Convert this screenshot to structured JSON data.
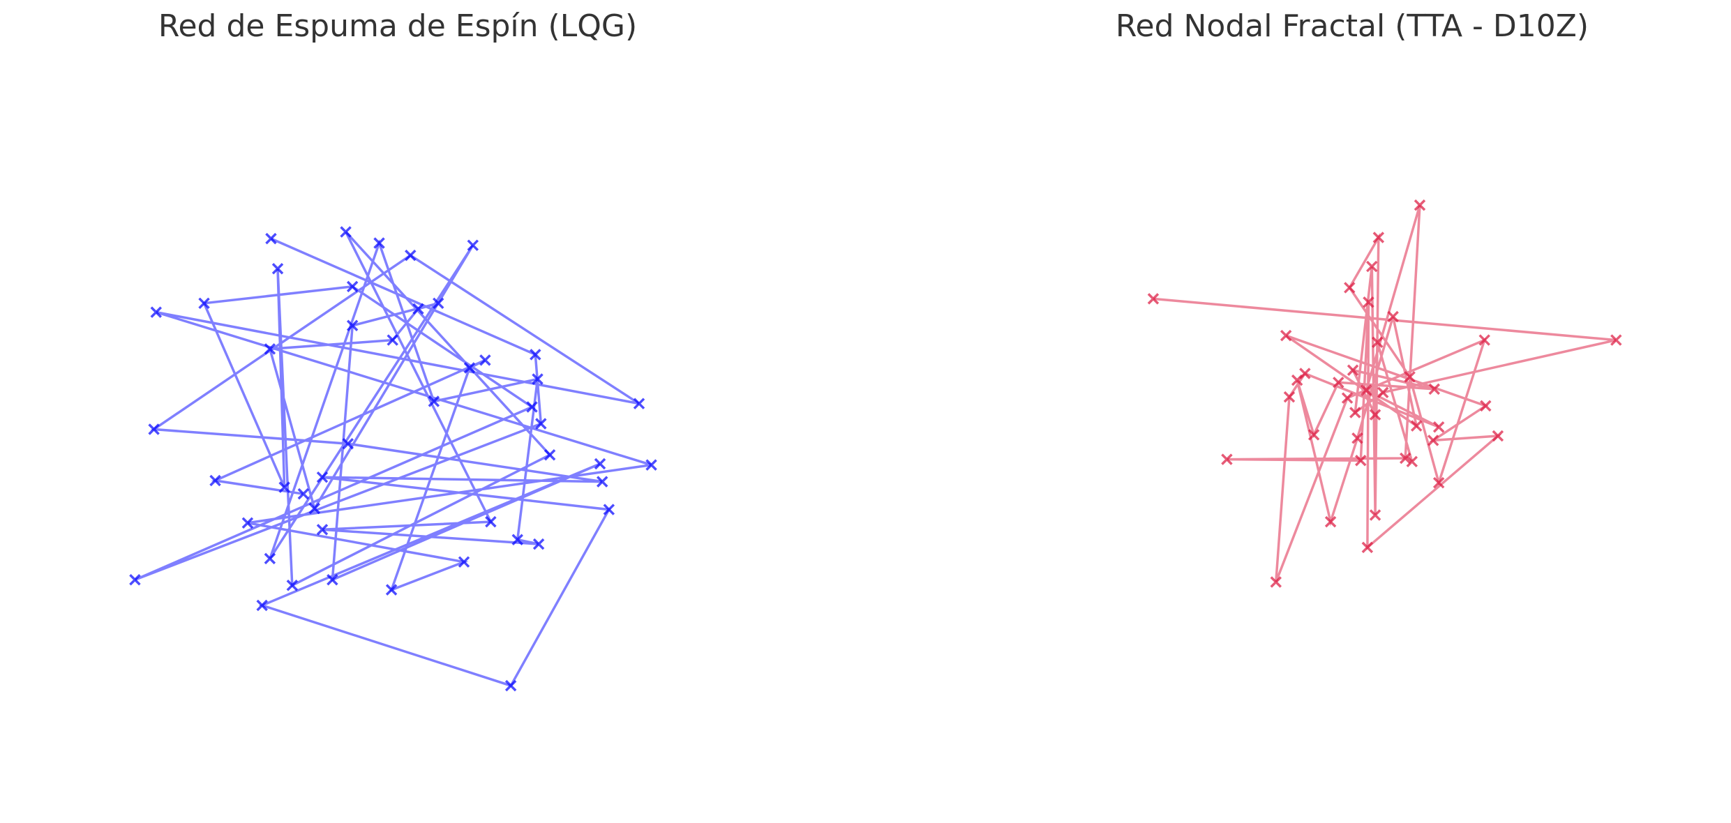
{
  "chart_data": [
    {
      "type": "line",
      "title": "Red de Espuma de Espín (LQG)",
      "marker": "x",
      "xlim": [
        60,
        650
      ],
      "ylim": [
        40,
        700
      ],
      "x": [
        243,
        480,
        485,
        121,
        477,
        316,
        183,
        255,
        249,
        262,
        493,
        310,
        440,
        289,
        483,
        464,
        482,
        389,
        340,
        242,
        424,
        282,
        242,
        352,
        375,
        393,
        316,
        298,
        538,
        235,
        458,
        546,
        289,
        540,
        312,
        138,
        368,
        573,
        140,
        584,
        222,
        416,
        351,
        421,
        435,
        193,
        272
      ],
      "series": [
        {
          "color": "#0000ff",
          "values": [
            526,
            422,
            360,
            220,
            375,
            483,
            468,
            303,
            499,
            215,
            332,
            532,
            272,
            265,
            252,
            256,
            400,
            380,
            522,
            239,
            520,
            284,
            427,
            435,
            463,
            468,
            448,
            220,
            324,
            197,
            125,
            283,
            312,
            308,
            342,
            355,
            511,
            378,
            460,
            323,
            271,
            236,
            211,
            410,
            417,
            309,
            297
          ]
        }
      ]
    },
    {
      "type": "line",
      "title": "Red Nodal Fractal (TTA - D10Z)",
      "marker": "x",
      "xlim": [
        900,
        1520
      ],
      "ylim": [
        40,
        700
      ],
      "x": [
        1034,
        1449,
        1240,
        1215,
        1230,
        1233,
        1236,
        1210,
        1264,
        1290,
        1331,
        1208,
        1144,
        1156,
        1170,
        1290,
        1225,
        1273,
        1260,
        1100,
        1220,
        1227,
        1226,
        1343,
        1285,
        1332,
        1153,
        1270,
        1249,
        1217,
        1193,
        1163,
        1178,
        1200,
        1286,
        1213,
        1233,
        1235,
        1266
      ],
      "series": [
        {
          "color": "#dc143c",
          "values": [
            472,
            435,
            388,
            370,
            501,
            278,
            527,
            482,
            402,
            307,
            435,
            383,
            218,
            384,
            405,
            357,
            390,
            556,
            329,
            328,
            327,
            469,
            249,
            349,
            345,
            376,
            439,
            358,
            456,
            347,
            272,
            399,
            350,
            397,
            391,
            408,
            368,
            433,
            326
          ]
        }
      ]
    }
  ]
}
